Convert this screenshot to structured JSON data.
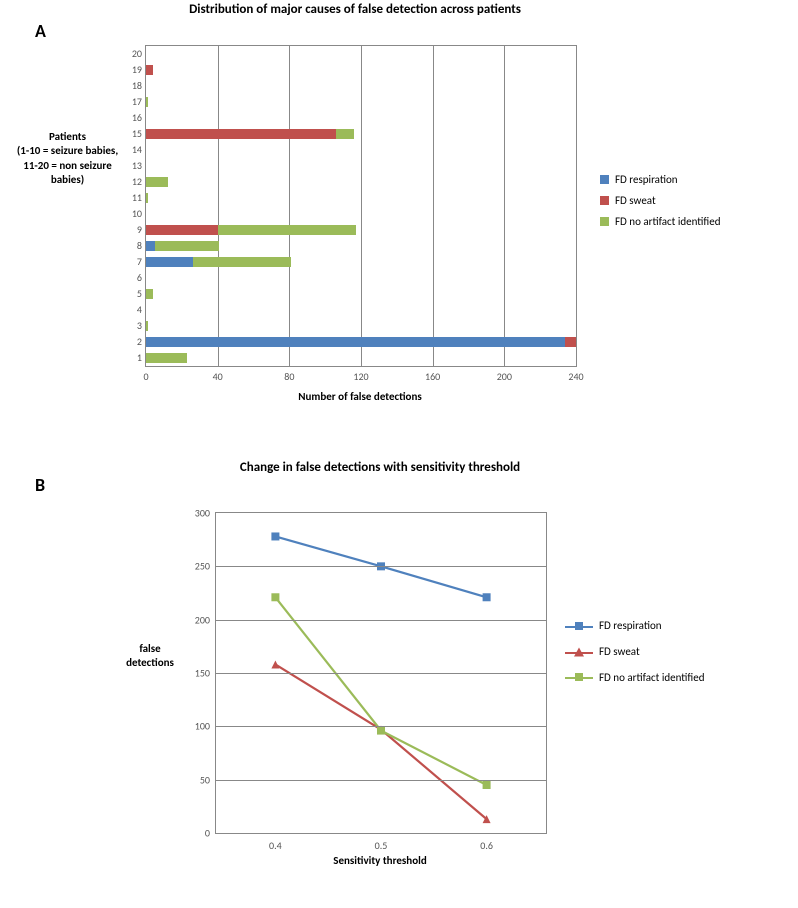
{
  "colors": {
    "blue": "#4f81bd",
    "red": "#c0504d",
    "green": "#9bbb59",
    "grid": "#888888",
    "bg": "#ffffff",
    "tick_text": "#555555"
  },
  "panelA": {
    "letter": "A",
    "title": "Distribution of major causes of false detection across patients",
    "title_fontsize": 13,
    "ylabel": "Patients\n(1-10 = seizure babies,\n11-20 = non seizure babies)",
    "xlabel": "Number of false detections",
    "xlim": [
      0,
      240
    ],
    "xtick_step": 40,
    "xticks": [
      0,
      40,
      80,
      120,
      160,
      200,
      240
    ],
    "categories": [
      "1",
      "2",
      "3",
      "4",
      "5",
      "6",
      "7",
      "8",
      "9",
      "10",
      "11",
      "12",
      "13",
      "14",
      "15",
      "16",
      "17",
      "18",
      "19",
      "20"
    ],
    "type": "stacked_horizontal_bar",
    "series": [
      {
        "name": "FD respiration",
        "color": "#4f81bd",
        "values": [
          0,
          234,
          0,
          0,
          0,
          0,
          26,
          5,
          0,
          0,
          0,
          0,
          0,
          0,
          0,
          0,
          0,
          0,
          0,
          0
        ]
      },
      {
        "name": "FD sweat",
        "color": "#c0504d",
        "values": [
          0,
          6,
          0,
          0,
          0,
          0,
          0,
          0,
          40,
          0,
          0,
          0,
          0,
          0,
          106,
          0,
          0,
          0,
          4,
          0
        ]
      },
      {
        "name": "FD  no artifact identified",
        "color": "#9bbb59",
        "values": [
          23,
          0,
          1,
          0,
          4,
          0,
          55,
          36,
          77,
          0,
          1,
          12,
          0,
          0,
          10,
          0,
          1,
          0,
          0,
          0
        ]
      }
    ],
    "bar_height_ratio": 0.62
  },
  "panelB": {
    "letter": "B",
    "title": "Change in false detections with sensitivity threshold",
    "title_fontsize": 13,
    "ylabel": "false detections",
    "xlabel": "Sensitivity threshold",
    "ylim": [
      0,
      300
    ],
    "ytick_step": 50,
    "yticks": [
      0,
      50,
      100,
      150,
      200,
      250,
      300
    ],
    "xvals": [
      0.4,
      0.5,
      0.6
    ],
    "xticks_labels": [
      "0.4",
      "0.5",
      "0.6"
    ],
    "type": "line",
    "line_width": 2.2,
    "marker_size": 8,
    "series": [
      {
        "name": "FD respiration",
        "color": "#4f81bd",
        "marker": "square",
        "values": [
          278,
          250,
          221
        ]
      },
      {
        "name": "FD sweat",
        "color": "#c0504d",
        "marker": "triangle",
        "values": [
          158,
          97,
          13
        ]
      },
      {
        "name": "FD  no artifact identified",
        "color": "#9bbb59",
        "marker": "square",
        "values": [
          221,
          96,
          45
        ]
      }
    ]
  }
}
